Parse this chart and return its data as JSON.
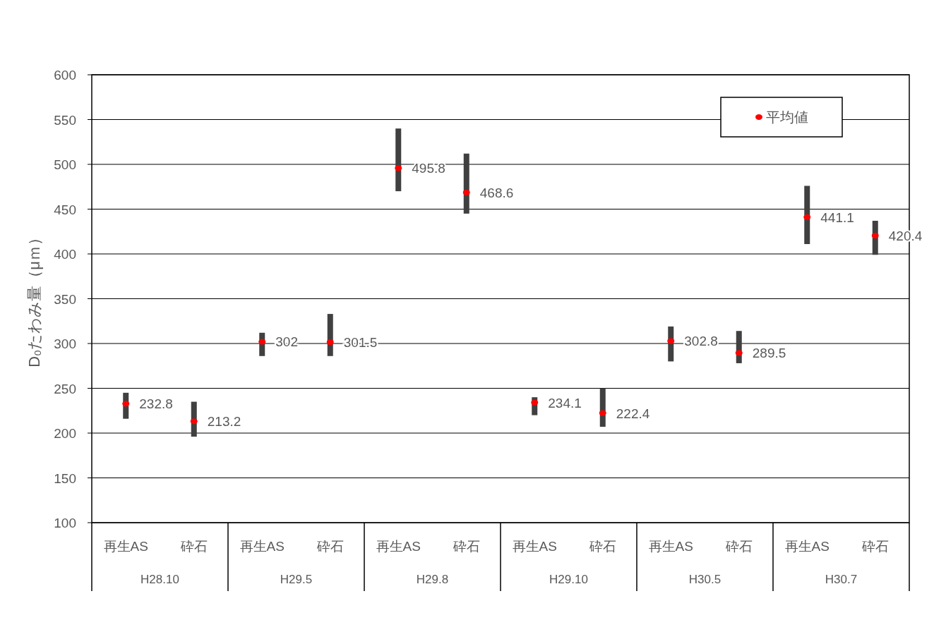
{
  "chart_data": {
    "type": "bar",
    "ylabel": "D₀たわみ量（μｍ）",
    "categories": [
      "再生AS",
      "砕石",
      "再生AS",
      "砕石",
      "再生AS",
      "砕石",
      "再生AS",
      "砕石",
      "再生AS",
      "砕石",
      "再生AS",
      "砕石"
    ],
    "annotations": [
      "H28.10",
      "H29.5",
      "H29.8",
      "H29.10",
      "H30.5",
      "H30.7"
    ],
    "series": [
      {
        "color": "#404040",
        "base": [
          216,
          196,
          286,
          286,
          470,
          445,
          220,
          207,
          280,
          278,
          411,
          399
        ],
        "values": [
          29,
          39,
          26,
          47,
          70,
          67,
          20,
          43,
          39,
          36,
          65,
          38
        ]
      },
      {
        "type": "scatter",
        "name": "平均値",
        "color": "#ff0000",
        "values": [
          232.8,
          213.2,
          302,
          301.5,
          495.8,
          468.6,
          234.1,
          222.4,
          302.8,
          289.5,
          441.1,
          420.4
        ],
        "value_labels": [
          "232.8",
          "213.2",
          "302",
          "301.5",
          "495.8",
          "468.6",
          "234.1",
          "222.4",
          "302.8",
          "289.5",
          "441.1",
          "420.4"
        ]
      }
    ],
    "ylim": [
      100,
      600
    ],
    "yticks": [
      100,
      150,
      200,
      250,
      300,
      350,
      400,
      450,
      500,
      550,
      600
    ],
    "grid": "y",
    "legend": "top right",
    "marker": "circle"
  }
}
